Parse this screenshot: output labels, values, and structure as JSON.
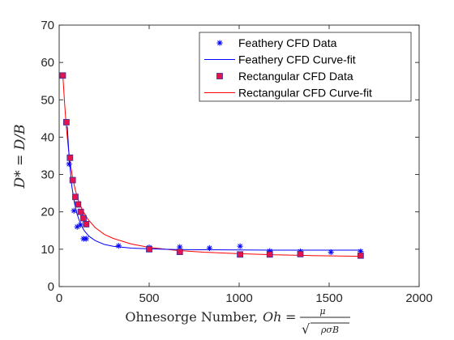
{
  "chart_data": {
    "type": "scatter",
    "xlabel": "Ohnesorge Number,",
    "xlabel_math": {
      "lhs": "Oh",
      "eq": "=",
      "numerator": "μ",
      "denominator": "ρσB",
      "sqrt": "√"
    },
    "ylabel": "D* = D/B",
    "xlim": [
      0,
      2000
    ],
    "ylim": [
      0,
      70
    ],
    "xticks": [
      0,
      500,
      1000,
      1500,
      2000
    ],
    "yticks": [
      0,
      10,
      20,
      30,
      40,
      50,
      60,
      70
    ],
    "grid": false,
    "legend_position": "top-right",
    "colors": {
      "feathery": "#0000ff",
      "rectangular_fill": "#e3134d",
      "rectangular_edge": "#3a2fa0",
      "rectangular_fit": "#ff0000",
      "axis": "#262626"
    },
    "series": [
      {
        "name": "Feathery CFD Data",
        "kind": "points",
        "marker": "asterisk",
        "x": [
          55,
          82,
          100,
          118,
          135,
          150,
          330,
          500,
          670,
          835,
          1005,
          1170,
          1340,
          1510,
          1675
        ],
        "y": [
          32.8,
          20.3,
          16.0,
          16.5,
          12.8,
          12.8,
          10.9,
          10.5,
          10.6,
          10.3,
          10.8,
          9.5,
          9.4,
          9.2,
          9.4
        ]
      },
      {
        "name": "Feathery CFD Curve-fit",
        "kind": "line",
        "x": [
          45,
          55,
          70,
          85,
          100,
          120,
          140,
          165,
          200,
          250,
          300,
          400,
          500,
          650,
          800,
          1000,
          1200,
          1400,
          1680
        ],
        "y": [
          43.0,
          34.8,
          27.0,
          22.3,
          19.3,
          16.6,
          14.9,
          13.5,
          12.3,
          11.3,
          10.8,
          10.3,
          10.1,
          9.9,
          9.85,
          9.8,
          9.75,
          9.75,
          9.75
        ]
      },
      {
        "name": "Rectangular CFD Data",
        "kind": "points",
        "marker": "square",
        "x": [
          20,
          40,
          60,
          75,
          90,
          105,
          120,
          135,
          150,
          500,
          670,
          1005,
          1170,
          1340,
          1675
        ],
        "y": [
          56.5,
          44.0,
          34.5,
          28.5,
          24.0,
          22.0,
          20.0,
          18.3,
          16.7,
          10.0,
          9.3,
          8.6,
          8.6,
          8.7,
          8.3
        ]
      },
      {
        "name": "Rectangular CFD Curve-fit",
        "kind": "line",
        "x": [
          20,
          30,
          40,
          50,
          60,
          75,
          90,
          110,
          130,
          160,
          200,
          250,
          300,
          400,
          500,
          650,
          800,
          1000,
          1200,
          1400,
          1680
        ],
        "y": [
          57.0,
          49.0,
          42.5,
          37.5,
          33.5,
          29.0,
          25.8,
          22.6,
          20.4,
          18.0,
          15.8,
          14.0,
          12.9,
          11.4,
          10.5,
          9.7,
          9.2,
          8.8,
          8.5,
          8.3,
          8.1
        ]
      }
    ]
  }
}
